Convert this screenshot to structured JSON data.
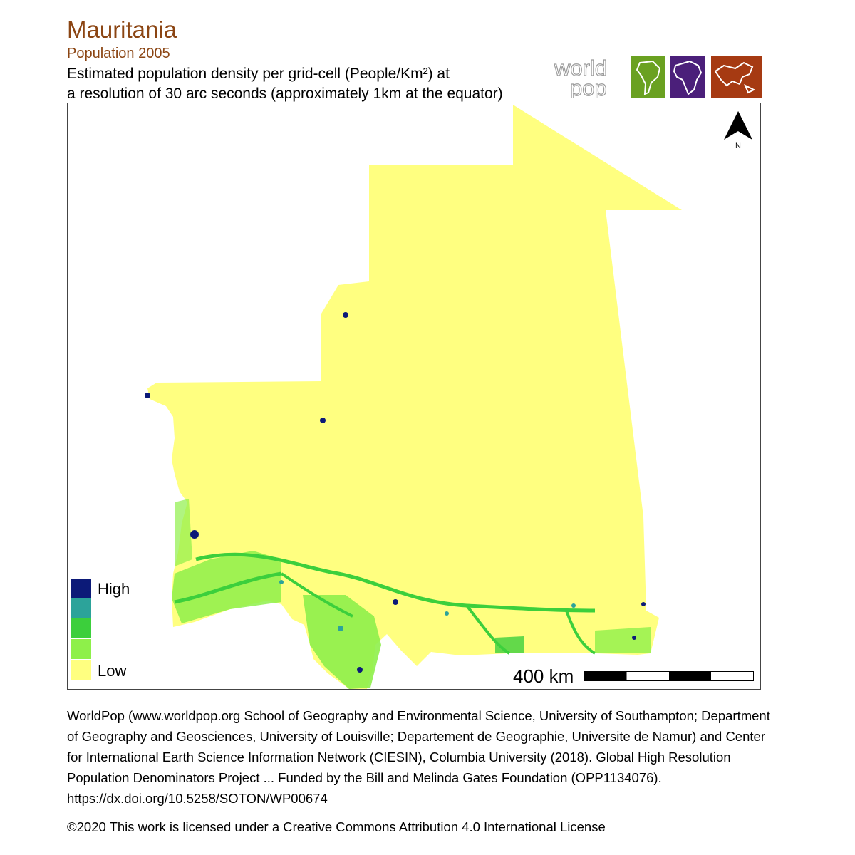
{
  "header": {
    "title": "Mauritania",
    "subtitle": "Population 2005",
    "description_line1": "Estimated population density per grid-cell (People/Km²) at",
    "description_line2": "a resolution of 30 arc seconds (approximately 1km at the equator)"
  },
  "logo": {
    "text_line1": "world",
    "text_line2": "pop",
    "tiles": [
      {
        "icon": "south-america-icon",
        "color": "#6aa121"
      },
      {
        "icon": "africa-icon",
        "color": "#4b1f7a"
      },
      {
        "icon": "asia-icon",
        "color": "#a63a12"
      }
    ]
  },
  "map": {
    "country": "Mauritania",
    "fill_low": "#ffff80",
    "north_label": "N"
  },
  "legend": {
    "high_label": "High",
    "low_label": "Low",
    "colors": [
      "#0c1a78",
      "#2ca39a",
      "#3ccf3c",
      "#8ef04a",
      "#ffff80"
    ]
  },
  "scale": {
    "label": "400 km"
  },
  "credits": {
    "text": "WorldPop (www.worldpop.org School of Geography and Environmental Science, University of Southampton; Department of Geography and Geosciences, University of Louisville; Departement de Geographie, Universite de Namur) and Center for International Earth Science Information Network (CIESIN), Columbia University (2018). Global High Resolution Population Denominators Project ... Funded by the Bill and Melinda Gates Foundation (OPP1134076). https://dx.doi.org/10.5258/SOTON/WP00674",
    "license": "©2020 This work is licensed under a Creative Commons Attribution 4.0 International License"
  }
}
